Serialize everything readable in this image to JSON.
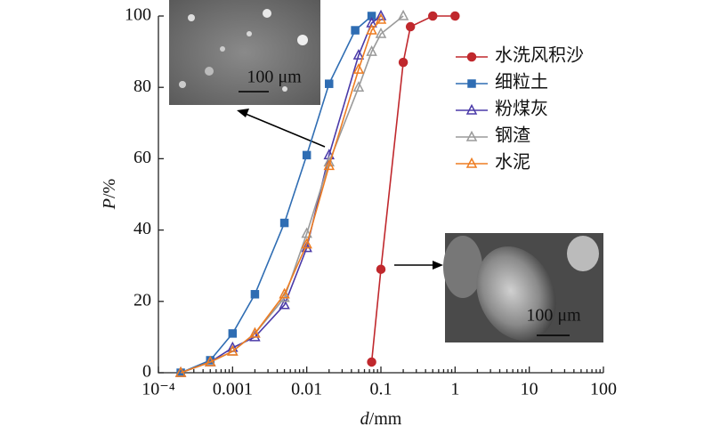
{
  "chart_data": {
    "type": "line",
    "x_label": {
      "symbol": "d",
      "unit": "/mm"
    },
    "y_label": {
      "symbol": "P",
      "unit": "/%"
    },
    "xscale": "log",
    "xlim": [
      0.0001,
      100
    ],
    "xticks": [
      {
        "value": 0.0001,
        "label": "10⁻⁴"
      },
      0.001,
      0.01,
      0.1,
      1,
      10,
      100
    ],
    "ylim": [
      0,
      100
    ],
    "yticks": [
      0,
      20,
      40,
      60,
      80,
      100
    ],
    "legend": "upper right",
    "series": [
      {
        "name": "水洗风积沙",
        "color": "#c0282d",
        "marker": "circle",
        "x": [
          0.075,
          0.1,
          0.2,
          0.25,
          0.5,
          1
        ],
        "values": [
          3,
          29,
          87,
          97,
          100,
          100
        ]
      },
      {
        "name": "细粒土",
        "color": "#2f6db3",
        "marker": "square",
        "x": [
          0.0002,
          0.0005,
          0.001,
          0.002,
          0.005,
          0.01,
          0.02,
          0.045,
          0.075
        ],
        "values": [
          0,
          3.5,
          11,
          22,
          42,
          61,
          81,
          96,
          100
        ]
      },
      {
        "name": "粉煤灰",
        "color": "#4a3aa8",
        "marker": "triangle",
        "x": [
          0.0002,
          0.0005,
          0.001,
          0.002,
          0.005,
          0.01,
          0.02,
          0.05,
          0.075,
          0.1
        ],
        "values": [
          0,
          3,
          7,
          10,
          19,
          35,
          61,
          89,
          98,
          100
        ]
      },
      {
        "name": "钢渣",
        "color": "#9a9a9a",
        "marker": "triangle",
        "x": [
          0.0002,
          0.0005,
          0.001,
          0.002,
          0.005,
          0.01,
          0.02,
          0.05,
          0.075,
          0.1,
          0.2
        ],
        "values": [
          0,
          3,
          6,
          11,
          21,
          39,
          59,
          80,
          90,
          95,
          100
        ]
      },
      {
        "name": "水泥",
        "color": "#ee7d22",
        "marker": "triangle",
        "x": [
          0.0002,
          0.0005,
          0.001,
          0.002,
          0.005,
          0.01,
          0.02,
          0.05,
          0.075,
          0.1
        ],
        "values": [
          0,
          3,
          6,
          11,
          22,
          36,
          58,
          85,
          96,
          99
        ]
      }
    ],
    "annotations": [
      "100 μm",
      "100 μm"
    ]
  }
}
